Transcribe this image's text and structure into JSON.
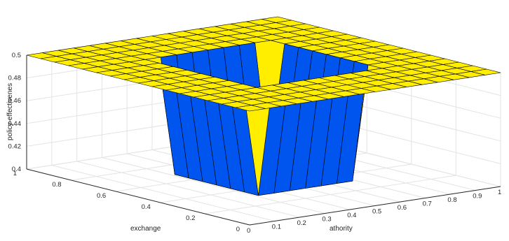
{
  "chart_data": {
    "type": "surface",
    "xlabel": "athority",
    "ylabel": "exchange",
    "zlabel": "policy-effectivenes",
    "xlim": [
      0,
      1
    ],
    "ylim": [
      0,
      1
    ],
    "zlim": [
      0.4,
      0.5
    ],
    "xticks": [
      "0",
      "0.1",
      "0.2",
      "0.3",
      "0.4",
      "0.5",
      "0.6",
      "0.7",
      "0.8",
      "0.9",
      "1"
    ],
    "yticks": [
      "0",
      "0.2",
      "0.4",
      "0.6",
      "0.8",
      "1"
    ],
    "zticks": [
      "0.4",
      "0.42",
      "0.44",
      "0.46",
      "0.48",
      "0.5"
    ],
    "grid": true,
    "colormap": [
      "#0055ee",
      "#ffee00"
    ],
    "x": [
      0,
      0.0625,
      0.125,
      0.1875,
      0.25,
      0.3125,
      0.375,
      0.4375,
      0.5,
      0.5625,
      0.625,
      0.6875,
      0.75,
      0.8125,
      0.875,
      0.9375,
      1
    ],
    "y": [
      0,
      0.0625,
      0.125,
      0.1875,
      0.25,
      0.3125,
      0.375,
      0.4375,
      0.5,
      0.5625,
      0.625,
      0.6875,
      0.75,
      0.8125,
      0.875,
      0.9375,
      1
    ],
    "z_outer": 0.5,
    "z_inner": 0.4,
    "inner_region": {
      "x": [
        0.3125,
        0.6875
      ],
      "y": [
        0.3125,
        0.6875
      ]
    }
  },
  "colors": {
    "high": "#ffee00",
    "low": "#0055ee",
    "edge": "#000000",
    "grid": "#e3e3e3",
    "figure_bg": "#f0f0f0",
    "axes_bg": "#ffffff"
  }
}
